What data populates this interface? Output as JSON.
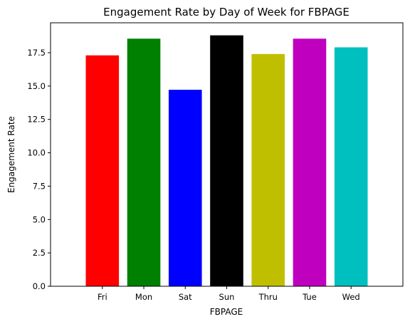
{
  "chart_data": {
    "type": "bar",
    "title": "Engagement Rate by Day of Week for FBPAGE",
    "xlabel": "FBPAGE",
    "ylabel": "Engagement Rate",
    "categories": [
      "Fri",
      "Mon",
      "Sat",
      "Sun",
      "Thru",
      "Tue",
      "Wed"
    ],
    "values": [
      17.3,
      18.55,
      14.72,
      18.8,
      17.4,
      18.55,
      17.9
    ],
    "colors": [
      "#ff0000",
      "#008000",
      "#0000ff",
      "#000000",
      "#bfbf00",
      "#bf00bf",
      "#00bfbf"
    ],
    "ylim": [
      0,
      19.74
    ],
    "yticks": [
      0.0,
      2.5,
      5.0,
      7.5,
      10.0,
      12.5,
      15.0,
      17.5
    ],
    "ytick_labels": [
      "0.0",
      "2.5",
      "5.0",
      "7.5",
      "10.0",
      "12.5",
      "15.0",
      "17.5"
    ],
    "grid": false,
    "legend": "none"
  }
}
